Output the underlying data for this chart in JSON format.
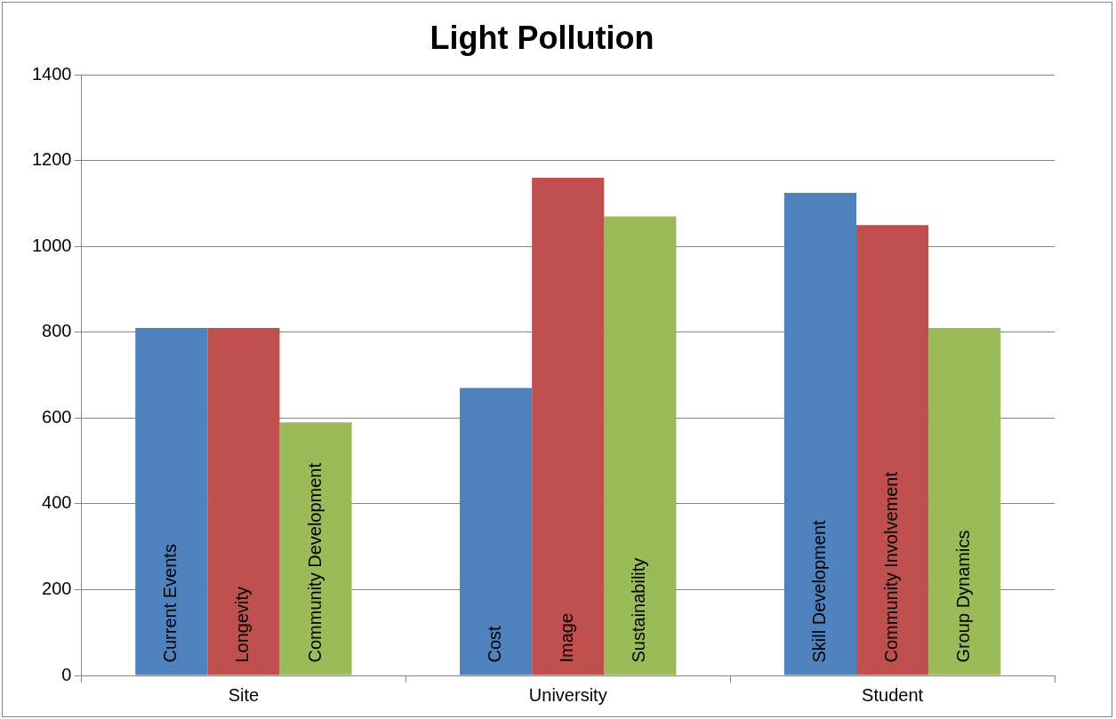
{
  "chart_data": {
    "type": "bar",
    "title": "Light Pollution",
    "categories": [
      "Site",
      "University",
      "Student"
    ],
    "series": [
      {
        "color": "#4f81bd",
        "values": [
          810,
          670,
          1125
        ],
        "value_labels": [
          "Current Events",
          "Cost",
          "Skill Development"
        ]
      },
      {
        "color": "#c0504d",
        "values": [
          810,
          1160,
          1050
        ],
        "value_labels": [
          "Longevity",
          "Image",
          "Community Involvement"
        ]
      },
      {
        "color": "#9bbb59",
        "values": [
          590,
          1070,
          810
        ],
        "value_labels": [
          "Community Development",
          "Sustainability",
          "Group Dynamics"
        ]
      }
    ],
    "ylim": [
      0,
      1400
    ],
    "yticks": [
      0,
      200,
      400,
      600,
      800,
      1000,
      1200,
      1400
    ],
    "grid": "y",
    "legend": false
  }
}
